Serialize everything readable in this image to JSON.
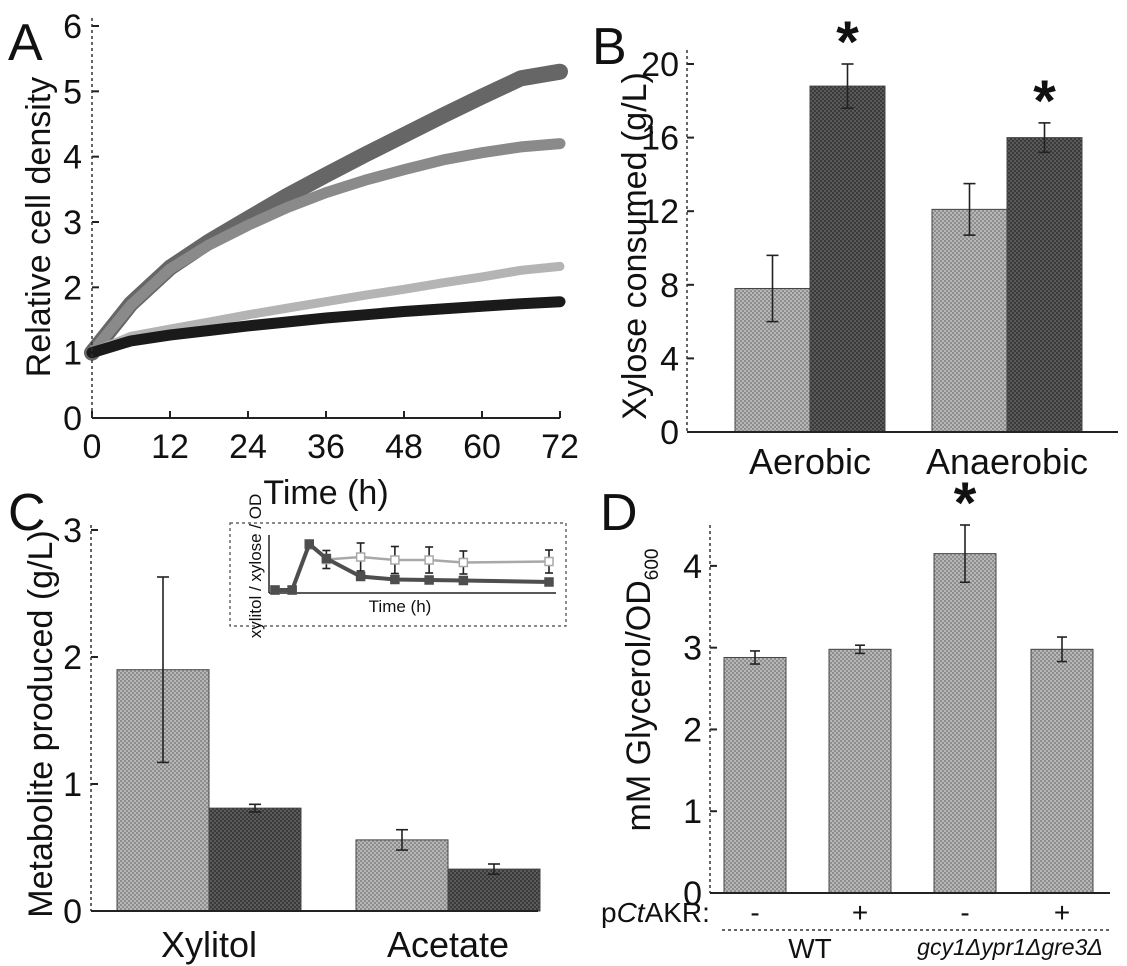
{
  "colors": {
    "light_bar": "#a9a9a9",
    "dark_bar": "#4e4e4e",
    "line_top": "#666666",
    "line_mid": "#8a8a8a",
    "line_light": "#b4b4b4",
    "line_black": "#1a1a1a",
    "inset_light": "#a8a8a8",
    "inset_dark": "#4e4e4e"
  },
  "chart_data": [
    {
      "panel": "A",
      "type": "line",
      "xlabel": "Time (h)",
      "ylabel": "Relative cell density",
      "xlim": [
        0,
        72
      ],
      "ylim": [
        0,
        6
      ],
      "xticks": [
        "0",
        "12",
        "24",
        "36",
        "48",
        "60",
        "72"
      ],
      "yticks": [
        "0",
        "1",
        "2",
        "3",
        "4",
        "5",
        "6"
      ],
      "x": [
        0,
        6,
        12,
        18,
        24,
        30,
        36,
        42,
        48,
        54,
        60,
        66,
        72
      ],
      "series": [
        {
          "values": [
            1.0,
            1.75,
            2.3,
            2.7,
            3.05,
            3.4,
            3.72,
            4.03,
            4.33,
            4.63,
            4.92,
            5.2,
            5.3
          ]
        },
        {
          "values": [
            1.0,
            1.73,
            2.28,
            2.65,
            2.95,
            3.22,
            3.45,
            3.64,
            3.8,
            3.95,
            4.06,
            4.15,
            4.2
          ]
        },
        {
          "values": [
            1.0,
            1.25,
            1.36,
            1.47,
            1.58,
            1.68,
            1.78,
            1.88,
            1.97,
            2.07,
            2.16,
            2.26,
            2.32
          ]
        },
        {
          "values": [
            1.0,
            1.18,
            1.27,
            1.34,
            1.41,
            1.47,
            1.53,
            1.58,
            1.63,
            1.67,
            1.71,
            1.75,
            1.78
          ]
        }
      ]
    },
    {
      "panel": "B",
      "type": "bar",
      "ylabel": "Xylose consumed (g/L)",
      "ylim": [
        0,
        20
      ],
      "yticks": [
        "0",
        "4",
        "8",
        "12",
        "16",
        "20"
      ],
      "categories": [
        "Aerobic",
        "Anaerobic"
      ],
      "series": [
        {
          "values": [
            7.8,
            12.1
          ],
          "errors": [
            1.8,
            1.4
          ]
        },
        {
          "values": [
            18.8,
            16.0
          ],
          "errors": [
            1.2,
            0.8
          ]
        }
      ],
      "annotations": [
        "*",
        "*"
      ]
    },
    {
      "panel": "C",
      "type": "bar",
      "ylabel": "Metabolite produced (g/L)",
      "ylim": [
        0,
        3
      ],
      "yticks": [
        "0",
        "1",
        "2",
        "3"
      ],
      "categories": [
        "Xylitol",
        "Acetate"
      ],
      "series": [
        {
          "values": [
            1.9,
            0.56
          ],
          "errors": [
            0.73,
            0.08
          ]
        },
        {
          "values": [
            0.81,
            0.33
          ],
          "errors": [
            0.03,
            0.04
          ]
        }
      ],
      "inset": {
        "type": "line",
        "xlabel": "Time (h)",
        "ylabel": "xylitol / xylose / OD",
        "x": [
          0,
          1,
          2,
          3,
          5,
          7,
          9,
          11,
          13,
          16
        ],
        "ylim": [
          0,
          1
        ],
        "series": [
          {
            "values": [
              0.0,
              0.0,
              0.9,
              0.61,
              0.66,
              0.6,
              0.6,
              0.55,
              null,
              0.57
            ],
            "errors": [
              0,
              0,
              0.05,
              0.18,
              0.28,
              0.27,
              0.26,
              0.23,
              null,
              0.23
            ]
          },
          {
            "values": [
              0.0,
              0.0,
              0.92,
              0.63,
              0.27,
              0.21,
              0.2,
              0.19,
              null,
              0.16
            ],
            "errors": [
              0,
              0,
              0.03,
              0.02,
              0.01,
              0.01,
              0.01,
              0.01,
              null,
              0.01
            ]
          }
        ]
      }
    },
    {
      "panel": "D",
      "type": "bar",
      "ylabel_main": "mM Glycerol/OD",
      "ylabel_sub": "600",
      "ylim": [
        0,
        4.5
      ],
      "yticks": [
        "0",
        "1",
        "2",
        "3",
        "4"
      ],
      "row_label_prefix": "p",
      "row_label_italic": "Ct",
      "row_label_suffix": "AKR:",
      "signs": [
        "-",
        "+",
        "-",
        "+"
      ],
      "groups": [
        "WT",
        "gcy1Δypr1Δgre3Δ"
      ],
      "values": [
        2.88,
        2.98,
        4.15,
        2.98
      ],
      "errors": [
        0.08,
        0.05,
        0.35,
        0.15
      ],
      "annotations": [
        "*"
      ]
    }
  ],
  "panel_labels": [
    "A",
    "B",
    "C",
    "D"
  ]
}
